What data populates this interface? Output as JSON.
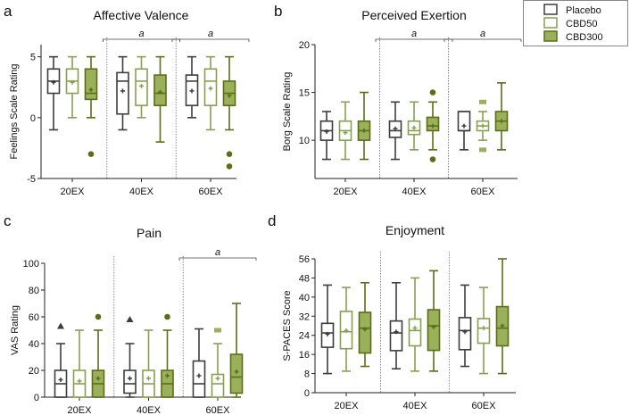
{
  "legend": {
    "entries": [
      {
        "name": "Placebo",
        "stroke": "#3d3d3d",
        "fill": "#ffffff"
      },
      {
        "name": "CBD50",
        "stroke": "#86a14f",
        "fill": "#ffffff"
      },
      {
        "name": "CBD300",
        "stroke": "#5b6e17",
        "fill": "#9bb05a"
      }
    ]
  },
  "chart_data": [
    {
      "letter": "a",
      "type": "box",
      "title": "Affective Valence",
      "ylabel": "Feelings Scale Rating",
      "ylim": [
        -5,
        6
      ],
      "yticks": [
        "-5",
        "0",
        "5"
      ],
      "ytick_values": [
        -5,
        0,
        5
      ],
      "categories": [
        "20EX",
        "40EX",
        "60EX"
      ],
      "significance": [
        {
          "category": "40EX",
          "label": "a"
        },
        {
          "category": "60EX",
          "label": "a"
        }
      ],
      "series": [
        {
          "name": "Placebo",
          "boxes": [
            {
              "min": -1,
              "q1": 2,
              "median": 3,
              "q3": 4,
              "max": 5,
              "mean": 2.9,
              "outliers": []
            },
            {
              "min": -1,
              "q1": 0.3,
              "median": 3,
              "q3": 3.7,
              "max": 5,
              "mean": 2.2,
              "outliers": []
            },
            {
              "min": 0,
              "q1": 1,
              "median": 3,
              "q3": 3.5,
              "max": 5,
              "mean": 2.2,
              "outliers": []
            }
          ]
        },
        {
          "name": "CBD50",
          "boxes": [
            {
              "min": 0,
              "q1": 2,
              "median": 3,
              "q3": 4,
              "max": 5,
              "mean": 2.9,
              "outliers": []
            },
            {
              "min": 0,
              "q1": 1,
              "median": 3,
              "q3": 4,
              "max": 5,
              "mean": 2.6,
              "outliers": []
            },
            {
              "min": -1,
              "q1": 1,
              "median": 3,
              "q3": 4,
              "max": 5,
              "mean": 2.4,
              "outliers": []
            }
          ]
        },
        {
          "name": "CBD300",
          "boxes": [
            {
              "min": 0,
              "q1": 1.5,
              "median": 2,
              "q3": 4,
              "max": 5,
              "mean": 2.3,
              "outliers": [
                {
                  "v": -3,
                  "m": "circle"
                }
              ]
            },
            {
              "min": -2,
              "q1": 1,
              "median": 2,
              "q3": 3.5,
              "max": 5,
              "mean": 2.1,
              "outliers": []
            },
            {
              "min": -1,
              "q1": 1,
              "median": 2,
              "q3": 3,
              "max": 5,
              "mean": 1.8,
              "outliers": [
                {
                  "v": -3,
                  "m": "circle"
                },
                {
                  "v": -4,
                  "m": "circle"
                }
              ]
            }
          ]
        }
      ]
    },
    {
      "letter": "b",
      "type": "box",
      "title": "Perceived Exertion",
      "ylabel": "Borg Scale Rating",
      "ylim": [
        6,
        20
      ],
      "yticks": [
        "10",
        "15",
        "20"
      ],
      "ytick_values": [
        10,
        15,
        20
      ],
      "categories": [
        "20EX",
        "40EX",
        "60EX"
      ],
      "significance": [
        {
          "category": "40EX",
          "label": "a"
        },
        {
          "category": "60EX",
          "label": "a"
        }
      ],
      "series": [
        {
          "name": "Placebo",
          "boxes": [
            {
              "min": 8,
              "q1": 10,
              "median": 11,
              "q3": 12,
              "max": 13,
              "mean": 10.9,
              "outliers": []
            },
            {
              "min": 8,
              "q1": 10.3,
              "median": 11,
              "q3": 12,
              "max": 14,
              "mean": 11.2,
              "outliers": []
            },
            {
              "min": 9,
              "q1": 11,
              "median": 11,
              "q3": 13,
              "max": 13,
              "mean": 11.5,
              "outliers": []
            }
          ]
        },
        {
          "name": "CBD50",
          "boxes": [
            {
              "min": 8,
              "q1": 10,
              "median": 11,
              "q3": 12,
              "max": 14,
              "mean": 10.8,
              "outliers": []
            },
            {
              "min": 9,
              "q1": 10.6,
              "median": 11,
              "q3": 12,
              "max": 14,
              "mean": 11.3,
              "outliers": []
            },
            {
              "min": 10,
              "q1": 11,
              "median": 11.5,
              "q3": 12,
              "max": 13,
              "mean": 11.5,
              "outliers": [
                {
                  "v": 14,
                  "m": "square"
                },
                {
                  "v": 9,
                  "m": "square"
                }
              ]
            }
          ]
        },
        {
          "name": "CBD300",
          "boxes": [
            {
              "min": 8,
              "q1": 10,
              "median": 11,
              "q3": 12,
              "max": 15,
              "mean": 11,
              "outliers": []
            },
            {
              "min": 9,
              "q1": 11,
              "median": 11.5,
              "q3": 12.4,
              "max": 14,
              "mean": 11.5,
              "outliers": [
                {
                  "v": 15,
                  "m": "circle"
                },
                {
                  "v": 8,
                  "m": "circle"
                }
              ]
            },
            {
              "min": 9,
              "q1": 11,
              "median": 12,
              "q3": 13,
              "max": 16,
              "mean": 12,
              "outliers": []
            }
          ]
        }
      ]
    },
    {
      "letter": "c",
      "type": "box",
      "title": "Pain",
      "ylabel": "VAS Rating",
      "ylim": [
        0,
        100
      ],
      "yticks": [
        "0",
        "20",
        "40",
        "60",
        "80",
        "100"
      ],
      "ytick_values": [
        0,
        20,
        40,
        60,
        80,
        100
      ],
      "categories": [
        "20EX",
        "40EX",
        "60EX"
      ],
      "significance": [
        {
          "category": "60EX",
          "label": "a"
        }
      ],
      "series": [
        {
          "name": "Placebo",
          "boxes": [
            {
              "min": 0,
              "q1": 0,
              "median": 10,
              "q3": 20,
              "max": 40,
              "mean": 13,
              "outliers": [
                {
                  "v": 53,
                  "m": "triangle"
                }
              ]
            },
            {
              "min": 0,
              "q1": 3,
              "median": 10,
              "q3": 20,
              "max": 40,
              "mean": 14,
              "outliers": [
                {
                  "v": 58,
                  "m": "triangle"
                }
              ]
            },
            {
              "min": 0,
              "q1": 0,
              "median": 10,
              "q3": 27,
              "max": 51,
              "mean": 16,
              "outliers": []
            }
          ]
        },
        {
          "name": "CBD50",
          "boxes": [
            {
              "min": 0,
              "q1": 0,
              "median": 10,
              "q3": 20,
              "max": 50,
              "mean": 12,
              "outliers": []
            },
            {
              "min": 0,
              "q1": 0,
              "median": 10,
              "q3": 20,
              "max": 50,
              "mean": 14,
              "outliers": []
            },
            {
              "min": 0,
              "q1": 0,
              "median": 10,
              "q3": 17,
              "max": 40,
              "mean": 14,
              "outliers": [
                {
                  "v": 50,
                  "m": "square"
                }
              ]
            }
          ]
        },
        {
          "name": "CBD300",
          "boxes": [
            {
              "min": 0,
              "q1": 0,
              "median": 10,
              "q3": 20,
              "max": 50,
              "mean": 14,
              "outliers": [
                {
                  "v": 60,
                  "m": "circle"
                }
              ]
            },
            {
              "min": 0,
              "q1": 0,
              "median": 10,
              "q3": 20,
              "max": 50,
              "mean": 16,
              "outliers": [
                {
                  "v": 60,
                  "m": "circle"
                }
              ]
            },
            {
              "min": 0,
              "q1": 3,
              "median": 15,
              "q3": 32,
              "max": 70,
              "mean": 19,
              "outliers": []
            }
          ]
        }
      ]
    },
    {
      "letter": "d",
      "type": "box",
      "title": "Enjoyment",
      "ylabel": "S-PACES Score",
      "ylim": [
        0,
        56
      ],
      "yticks": [
        "0",
        "8",
        "16",
        "24",
        "32",
        "40",
        "48",
        "56"
      ],
      "ytick_values": [
        0,
        8,
        16,
        24,
        32,
        40,
        48,
        56
      ],
      "categories": [
        "20EX",
        "40EX",
        "60EX"
      ],
      "significance": [],
      "series": [
        {
          "name": "Placebo",
          "boxes": [
            {
              "min": 8,
              "q1": 19,
              "median": 25,
              "q3": 29,
              "max": 45,
              "mean": 24.5,
              "outliers": []
            },
            {
              "min": 10,
              "q1": 17.6,
              "median": 25,
              "q3": 30,
              "max": 46,
              "mean": 25.5,
              "outliers": []
            },
            {
              "min": 11,
              "q1": 18,
              "median": 26,
              "q3": 31.4,
              "max": 45,
              "mean": 25.5,
              "outliers": []
            }
          ]
        },
        {
          "name": "CBD50",
          "boxes": [
            {
              "min": 9,
              "q1": 18.4,
              "median": 25.5,
              "q3": 34,
              "max": 44,
              "mean": 26,
              "outliers": []
            },
            {
              "min": 9,
              "q1": 19.6,
              "median": 26,
              "q3": 30.8,
              "max": 48,
              "mean": 27,
              "outliers": []
            },
            {
              "min": 8,
              "q1": 20.7,
              "median": 27,
              "q3": 31,
              "max": 44,
              "mean": 27,
              "outliers": []
            }
          ]
        },
        {
          "name": "CBD300",
          "boxes": [
            {
              "min": 11,
              "q1": 16.6,
              "median": 27,
              "q3": 33.6,
              "max": 46,
              "mean": 26.5,
              "outliers": []
            },
            {
              "min": 9,
              "q1": 17.7,
              "median": 28,
              "q3": 34.7,
              "max": 51,
              "mean": 27.5,
              "outliers": []
            },
            {
              "min": 8,
              "q1": 19.6,
              "median": 27,
              "q3": 36,
              "max": 56,
              "mean": 28,
              "outliers": []
            }
          ]
        }
      ]
    }
  ]
}
